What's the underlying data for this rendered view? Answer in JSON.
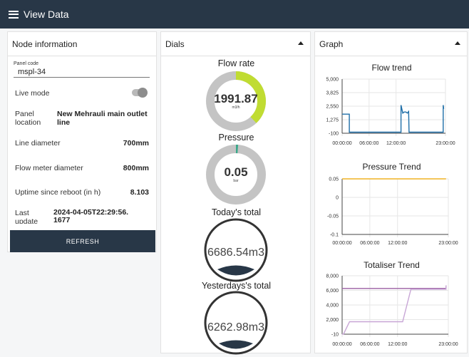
{
  "app": {
    "title": "View Data"
  },
  "node": {
    "heading": "Node information",
    "panel_code_label": "Panel code",
    "panel_code_value": "mspl-34",
    "live_mode_label": "Live mode",
    "live_mode_on": false,
    "location_label": "Panel location",
    "location_value": "New Mehrauli main outlet line",
    "line_diameter_label": "Line diameter",
    "line_diameter_value": "700mm",
    "meter_diameter_label": "Flow meter diameter",
    "meter_diameter_value": "800mm",
    "uptime_label": "Uptime since reboot (in h)",
    "uptime_value": "8.103",
    "last_update_label": "Last update",
    "last_update_value": "2024-04-05T22:29:56.1677",
    "refresh_label": "REFRESH"
  },
  "dials": {
    "heading": "Dials",
    "flow": {
      "title": "Flow rate",
      "value": "1991.87",
      "unit": "m3/h",
      "fraction": 0.38,
      "color": "#c0dc32"
    },
    "pressure": {
      "title": "Pressure",
      "value": "0.05",
      "unit": "bar",
      "fraction": 0.01,
      "color": "#3aa88a"
    },
    "today": {
      "title": "Today's total",
      "value": "6686.54m3"
    },
    "yesterday": {
      "title": "Yesterdays's total",
      "value": "6262.98m3"
    }
  },
  "graph": {
    "heading": "Graph",
    "x_ticks": [
      "00:00:00",
      "06:00:00",
      "12:00:00",
      "23:00:00"
    ],
    "charts": [
      {
        "title": "Flow trend",
        "y_ticks": [
          "5,000",
          "3,825",
          "2,550",
          "1,275",
          "-100"
        ],
        "ylim": [
          -100,
          5000
        ],
        "color": "#1f6fa8",
        "series": [
          [
            0,
            1700
          ],
          [
            1.6,
            1700
          ],
          [
            1.6,
            0
          ],
          [
            13.1,
            0
          ],
          [
            13.1,
            2550
          ],
          [
            13.5,
            1800
          ],
          [
            13.8,
            1900
          ],
          [
            14.2,
            1900
          ],
          [
            14.5,
            1800
          ],
          [
            14.8,
            1950
          ],
          [
            14.9,
            0
          ],
          [
            22.5,
            0
          ],
          [
            22.5,
            2550
          ],
          [
            22.6,
            2200
          ]
        ]
      },
      {
        "title": "Pressure Trend",
        "y_ticks": [
          "0.05",
          "0",
          "-0.05",
          "-0.1"
        ],
        "ylim": [
          -0.1,
          0.05
        ],
        "color": "#f0b324",
        "series": [
          [
            0,
            0.05
          ],
          [
            22.5,
            0.05
          ]
        ]
      },
      {
        "title": "Totaliser Trend",
        "y_ticks": [
          "8,000",
          "6,000",
          "4,000",
          "2,000",
          "-10"
        ],
        "ylim": [
          -10,
          8000
        ],
        "series_list": [
          {
            "color": "#9b5fa3",
            "points": [
              [
                0,
                6260
              ],
              [
                22.5,
                6260
              ],
              [
                22.5,
                6580
              ]
            ]
          },
          {
            "color": "#c8a6d6",
            "points": [
              [
                0,
                -10
              ],
              [
                0.3,
                0
              ],
              [
                1.6,
                1700
              ],
              [
                13.1,
                1700
              ],
              [
                14.9,
                6150
              ],
              [
                22.5,
                6150
              ],
              [
                22.5,
                6690
              ]
            ]
          }
        ]
      }
    ]
  }
}
